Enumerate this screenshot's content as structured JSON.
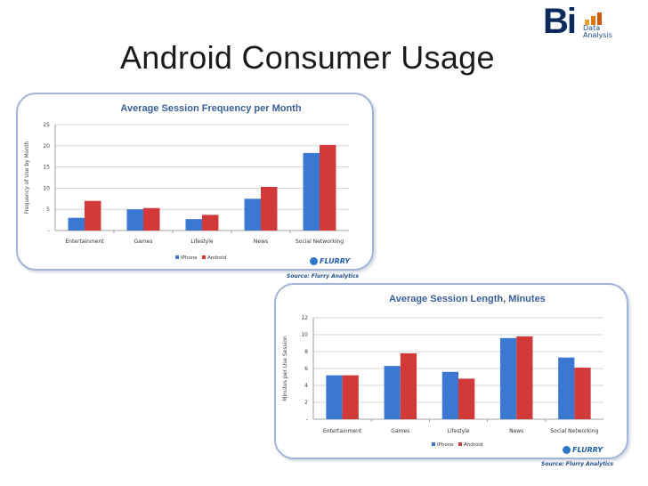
{
  "slide": {
    "title": "Android Consumer Usage"
  },
  "logo": {
    "mark": "Bi",
    "line1": "Data",
    "line2": "Analysis"
  },
  "charts": {
    "frequency": {
      "source": "Source: Flurry Analytics",
      "brand": "FLURRY"
    },
    "length": {
      "source": "Source: Flurry Analytics",
      "brand": "FLURRY"
    }
  },
  "chart_data": [
    {
      "type": "bar",
      "title": "Average Session Frequency per Month",
      "xlabel": "",
      "ylabel": "Frequency of Use by Month",
      "categories": [
        "Entertainment",
        "Games",
        "Lifestyle",
        "News",
        "Social Networking"
      ],
      "series": [
        {
          "name": "iPhone",
          "values": [
            3,
            5,
            2.7,
            7.5,
            18.3
          ],
          "color": "#3b78d1"
        },
        {
          "name": "Android",
          "values": [
            7,
            5.3,
            3.7,
            10.3,
            20.2
          ],
          "color": "#d23a3a"
        }
      ],
      "ylim": [
        0,
        25
      ],
      "yticks": [
        "-",
        "5",
        "10",
        "15",
        "20",
        "25"
      ],
      "grid": true,
      "legend": "bottom"
    },
    {
      "type": "bar",
      "title": "Average Session Length, Minutes",
      "xlabel": "",
      "ylabel": "Minutes per Use Session",
      "categories": [
        "Entertainment",
        "Games",
        "Lifestyle",
        "News",
        "Social Networking"
      ],
      "series": [
        {
          "name": "iPhone",
          "values": [
            5.2,
            6.3,
            5.6,
            9.6,
            7.3
          ],
          "color": "#3b78d1"
        },
        {
          "name": "Android",
          "values": [
            5.2,
            7.8,
            4.8,
            9.8,
            6.1
          ],
          "color": "#d23a3a"
        }
      ],
      "ylim": [
        0,
        12
      ],
      "yticks": [
        "-",
        "2",
        "4",
        "6",
        "8",
        "10",
        "12"
      ],
      "grid": true,
      "legend": "bottom"
    }
  ]
}
